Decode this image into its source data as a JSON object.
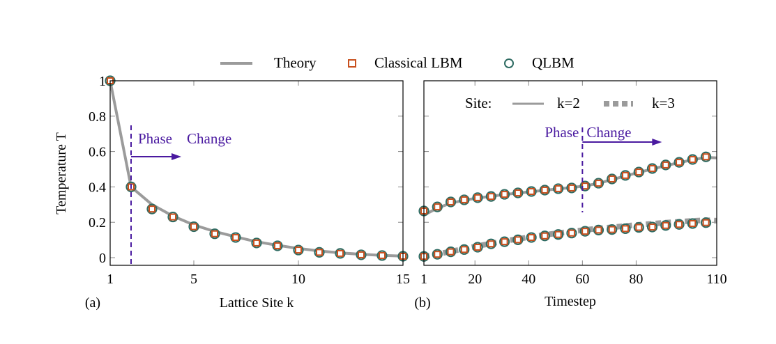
{
  "colors": {
    "theory": "#9b9b9b",
    "classical": "#c8501e",
    "qlbm": "#2e6b62",
    "annotation": "#4a1aa0",
    "axis": "#000000"
  },
  "legend": {
    "position": "top-center",
    "entries": [
      "Theory",
      "Classical LBM",
      "QLBM"
    ]
  },
  "chart_data": [
    {
      "type": "line",
      "panel_label": "(a)",
      "xlabel": "Lattice Site k",
      "ylabel": "Temperature T",
      "xlim": [
        1,
        15
      ],
      "ylim": [
        -0.04,
        1
      ],
      "xticks": [
        1,
        5,
        10,
        15
      ],
      "yticks": [
        0,
        0.2,
        0.4,
        0.6,
        0.8,
        1
      ],
      "ytick_labels": [
        "0",
        "0.2",
        "0.4",
        "0.6",
        "0.8",
        "1"
      ],
      "grid": false,
      "annotation": {
        "text_1": "Phase",
        "text_2": "Change",
        "x": 2
      },
      "x": [
        1,
        2,
        3,
        4,
        5,
        6,
        7,
        8,
        9,
        10,
        11,
        12,
        13,
        14,
        15
      ],
      "series": [
        {
          "name": "Theory",
          "style": "line",
          "values": [
            1,
            0.4,
            0.3,
            0.235,
            0.185,
            0.148,
            0.118,
            0.09,
            0.07,
            0.052,
            0.038,
            0.027,
            0.019,
            0.013,
            0.009
          ]
        },
        {
          "name": "Classical LBM",
          "style": "square",
          "values": [
            1,
            0.4,
            0.275,
            0.23,
            0.175,
            0.135,
            0.114,
            0.083,
            0.067,
            0.043,
            0.03,
            0.024,
            0.016,
            0.012,
            0.008
          ]
        },
        {
          "name": "QLBM",
          "style": "circle",
          "values": [
            1,
            0.4,
            0.275,
            0.23,
            0.175,
            0.135,
            0.114,
            0.083,
            0.067,
            0.043,
            0.03,
            0.024,
            0.016,
            0.012,
            0.008
          ]
        }
      ]
    },
    {
      "type": "line",
      "panel_label": "(b)",
      "xlabel": "Timestep",
      "ylabel": "",
      "xlim": [
        1,
        110
      ],
      "ylim": [
        -0.04,
        1
      ],
      "xticks": [
        1,
        20,
        40,
        60,
        80,
        110
      ],
      "yticks": [
        0,
        0.2,
        0.4,
        0.6,
        0.8,
        1
      ],
      "grid": false,
      "site_legend": {
        "title": "Site:",
        "entries": [
          "k=2",
          "k=3"
        ]
      },
      "annotation": {
        "text_1": "Phase",
        "text_2": "Change",
        "x": 60
      },
      "x": [
        1,
        6,
        11,
        16,
        21,
        26,
        31,
        36,
        41,
        46,
        51,
        56,
        61,
        66,
        71,
        76,
        81,
        86,
        91,
        96,
        101,
        106
      ],
      "series": [
        {
          "name": "Theory k=2",
          "style": "line",
          "values": [
            0.24,
            0.28,
            0.308,
            0.325,
            0.337,
            0.347,
            0.357,
            0.365,
            0.373,
            0.381,
            0.389,
            0.396,
            0.406,
            0.42,
            0.441,
            0.462,
            0.482,
            0.501,
            0.52,
            0.537,
            0.553,
            0.567
          ]
        },
        {
          "name": "Classical LBM k=2",
          "style": "square",
          "values": [
            0.264,
            0.287,
            0.315,
            0.327,
            0.339,
            0.346,
            0.358,
            0.366,
            0.374,
            0.382,
            0.39,
            0.394,
            0.405,
            0.421,
            0.445,
            0.465,
            0.484,
            0.504,
            0.524,
            0.539,
            0.555,
            0.57
          ]
        },
        {
          "name": "QLBM k=2",
          "style": "circle",
          "values": [
            0.264,
            0.287,
            0.315,
            0.327,
            0.339,
            0.346,
            0.358,
            0.366,
            0.374,
            0.382,
            0.39,
            0.394,
            0.405,
            0.421,
            0.445,
            0.465,
            0.484,
            0.504,
            0.524,
            0.539,
            0.555,
            0.57
          ]
        },
        {
          "name": "Theory k=3",
          "style": "dashed",
          "values": [
            0.007,
            0.02,
            0.035,
            0.05,
            0.066,
            0.08,
            0.094,
            0.106,
            0.118,
            0.129,
            0.139,
            0.148,
            0.157,
            0.165,
            0.172,
            0.179,
            0.186,
            0.192,
            0.198,
            0.203,
            0.208,
            0.212
          ]
        },
        {
          "name": "Classical LBM k=3",
          "style": "square",
          "values": [
            0.007,
            0.019,
            0.033,
            0.046,
            0.059,
            0.078,
            0.09,
            0.101,
            0.114,
            0.123,
            0.131,
            0.139,
            0.149,
            0.156,
            0.159,
            0.164,
            0.171,
            0.173,
            0.182,
            0.188,
            0.193,
            0.198
          ]
        },
        {
          "name": "QLBM k=3",
          "style": "circle",
          "values": [
            0.007,
            0.019,
            0.033,
            0.046,
            0.059,
            0.078,
            0.09,
            0.101,
            0.114,
            0.123,
            0.131,
            0.139,
            0.149,
            0.156,
            0.159,
            0.164,
            0.171,
            0.173,
            0.182,
            0.188,
            0.193,
            0.198
          ]
        }
      ]
    }
  ]
}
